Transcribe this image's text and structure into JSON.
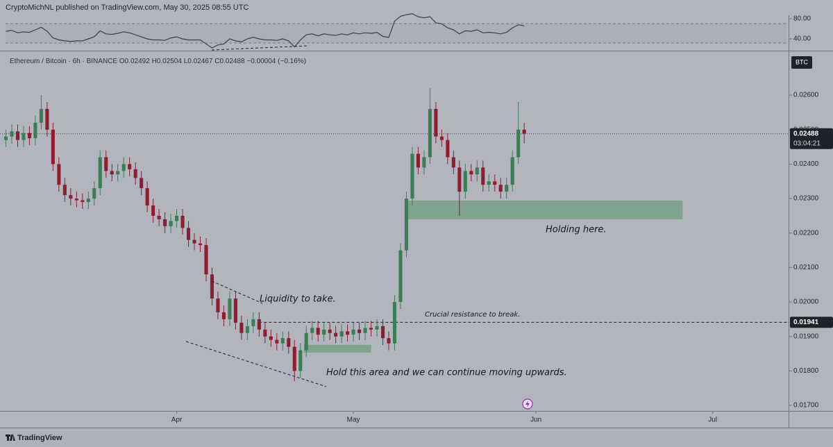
{
  "header": {
    "publish": "CryptoMichNL published on TradingView.com, May 30, 2025 08:55 UTC"
  },
  "chart_data": {
    "type": "candlestick",
    "symbol": "Ethereum / Bitcoin · 6h · BINANCE",
    "legend_values": [
      0.02492,
      0.02504,
      0.02467,
      0.02488,
      -4e-05,
      -0.16
    ],
    "legend_value_labels": [
      "O0.02492",
      "H0.02504",
      "L0.02467",
      "C0.02488",
      "−0.00004",
      "(−0.16%)"
    ],
    "currency": "BTC",
    "last_price": {
      "value": 0.02488,
      "label": "0.02488"
    },
    "countdown": "03:04:21",
    "resistance": {
      "value": 0.01941,
      "label": "0.01941"
    },
    "up_color": "#3b7d55",
    "down_color": "#8f1d2f",
    "grid": false,
    "ylim": [
      0.01684,
      0.02721
    ],
    "yticks": [
      {
        "value": 0.017,
        "label": "0.01700"
      },
      {
        "value": 0.018,
        "label": "0.01800"
      },
      {
        "value": 0.019,
        "label": "0.01900"
      },
      {
        "value": 0.02,
        "label": "0.02000"
      },
      {
        "value": 0.021,
        "label": "0.02100"
      },
      {
        "value": 0.022,
        "label": "0.02200"
      },
      {
        "value": 0.023,
        "label": "0.02300"
      },
      {
        "value": 0.024,
        "label": "0.02400"
      },
      {
        "value": 0.025,
        "label": "0.02500"
      },
      {
        "value": 0.026,
        "label": "0.02600"
      }
    ],
    "xlim": [
      -1,
      133
    ],
    "xticks": [
      {
        "value": 29,
        "label": "Apr"
      },
      {
        "value": 59,
        "label": "May"
      },
      {
        "value": 90,
        "label": "Jun"
      },
      {
        "value": 120,
        "label": "Jul"
      }
    ],
    "open": [
      0.0247,
      0.0248,
      0.02495,
      0.0247,
      0.0249,
      0.02475,
      0.0252,
      0.0256,
      0.025,
      0.024,
      0.0234,
      0.0231,
      0.023,
      0.02295,
      0.0229,
      0.023,
      0.0233,
      0.0242,
      0.0238,
      0.0237,
      0.0238,
      0.024,
      0.02385,
      0.0236,
      0.0233,
      0.0228,
      0.0225,
      0.0224,
      0.0222,
      0.02235,
      0.0225,
      0.02215,
      0.0218,
      0.0217,
      0.02165,
      0.0208,
      0.0201,
      0.0197,
      0.0195,
      0.0201,
      0.0194,
      0.0191,
      0.0193,
      0.0195,
      0.0192,
      0.019,
      0.0189,
      0.0188,
      0.01895,
      0.0187,
      0.018,
      0.0186,
      0.0191,
      0.01925,
      0.01905,
      0.0192,
      0.0191,
      0.019,
      0.01915,
      0.01905,
      0.0192,
      0.0191,
      0.01925,
      0.0192,
      0.0193,
      0.01895,
      0.0188,
      0.02,
      0.0215,
      0.023,
      0.0243,
      0.0239,
      0.0242,
      0.0256,
      0.0248,
      0.0247,
      0.0242,
      0.0239,
      0.0232,
      0.0238,
      0.0237,
      0.0239,
      0.0234,
      0.0235,
      0.0234,
      0.0232,
      0.0234,
      0.0242,
      0.025
    ],
    "high": [
      0.025,
      0.02515,
      0.02515,
      0.0251,
      0.0251,
      0.0254,
      0.026,
      0.0258,
      0.0252,
      0.0242,
      0.0236,
      0.0233,
      0.0232,
      0.02315,
      0.0232,
      0.0235,
      0.0244,
      0.0244,
      0.024,
      0.024,
      0.0242,
      0.0242,
      0.02405,
      0.0238,
      0.0235,
      0.023,
      0.0227,
      0.0226,
      0.02255,
      0.0227,
      0.0227,
      0.02235,
      0.022,
      0.0219,
      0.02185,
      0.021,
      0.0203,
      0.0199,
      0.0203,
      0.0203,
      0.0196,
      0.0195,
      0.0197,
      0.0197,
      0.0194,
      0.0192,
      0.0191,
      0.01915,
      0.01915,
      0.0189,
      0.0188,
      0.0193,
      0.01945,
      0.01945,
      0.0194,
      0.0194,
      0.0193,
      0.01935,
      0.01935,
      0.0194,
      0.0194,
      0.01945,
      0.01945,
      0.0195,
      0.0195,
      0.01915,
      0.0202,
      0.0217,
      0.0232,
      0.0245,
      0.0245,
      0.0244,
      0.0262,
      0.0258,
      0.025,
      0.0249,
      0.0244,
      0.0241,
      0.024,
      0.024,
      0.0241,
      0.0241,
      0.0237,
      0.0237,
      0.0236,
      0.0236,
      0.0244,
      0.0258,
      0.0252
    ],
    "low": [
      0.0245,
      0.0246,
      0.0245,
      0.0245,
      0.02455,
      0.02455,
      0.025,
      0.0248,
      0.0238,
      0.0232,
      0.0229,
      0.0228,
      0.02275,
      0.0227,
      0.0227,
      0.0228,
      0.0231,
      0.0236,
      0.0235,
      0.0235,
      0.0236,
      0.02365,
      0.0234,
      0.0231,
      0.0226,
      0.0223,
      0.0222,
      0.022,
      0.022,
      0.02215,
      0.02195,
      0.0216,
      0.0215,
      0.02145,
      0.0206,
      0.0199,
      0.0195,
      0.0193,
      0.0193,
      0.0192,
      0.0189,
      0.0189,
      0.0191,
      0.019,
      0.0188,
      0.0187,
      0.0186,
      0.0186,
      0.0185,
      0.0177,
      0.0178,
      0.0184,
      0.0189,
      0.01885,
      0.01885,
      0.0189,
      0.0188,
      0.0188,
      0.01885,
      0.01885,
      0.0189,
      0.0189,
      0.019,
      0.019,
      0.01875,
      0.0186,
      0.0186,
      0.0198,
      0.0213,
      0.0228,
      0.0237,
      0.0237,
      0.024,
      0.0246,
      0.0245,
      0.024,
      0.0237,
      0.0225,
      0.023,
      0.0235,
      0.0235,
      0.0232,
      0.0232,
      0.0232,
      0.023,
      0.023,
      0.0232,
      0.024,
      0.0246
    ],
    "close": [
      0.0248,
      0.02495,
      0.0247,
      0.0249,
      0.02475,
      0.0252,
      0.0256,
      0.025,
      0.024,
      0.0234,
      0.0231,
      0.023,
      0.02295,
      0.0229,
      0.023,
      0.0233,
      0.0242,
      0.0238,
      0.0237,
      0.0238,
      0.024,
      0.02385,
      0.0236,
      0.0233,
      0.0228,
      0.0225,
      0.0224,
      0.0222,
      0.02235,
      0.0225,
      0.02215,
      0.0218,
      0.0217,
      0.02165,
      0.0208,
      0.0201,
      0.0197,
      0.0195,
      0.0201,
      0.0194,
      0.0191,
      0.0193,
      0.0195,
      0.0192,
      0.019,
      0.0189,
      0.0188,
      0.01895,
      0.0187,
      0.018,
      0.0186,
      0.0191,
      0.01925,
      0.01905,
      0.0192,
      0.0191,
      0.019,
      0.01915,
      0.01905,
      0.0192,
      0.0191,
      0.01925,
      0.0192,
      0.0193,
      0.01895,
      0.0188,
      0.02,
      0.0215,
      0.023,
      0.0243,
      0.0239,
      0.0242,
      0.0256,
      0.0248,
      0.0247,
      0.0242,
      0.0239,
      0.0232,
      0.0238,
      0.0237,
      0.0239,
      0.0234,
      0.0235,
      0.0234,
      0.0232,
      0.0234,
      0.0242,
      0.025,
      0.02488
    ],
    "zones": [
      {
        "start": 67.9,
        "end": 114.9,
        "low": 0.0224,
        "high": 0.02294,
        "color": "#6f9e7f"
      },
      {
        "start": 50.6,
        "end": 62,
        "low": 0.01853,
        "high": 0.01876,
        "color": "#6f9e7f"
      }
    ],
    "annotations": [
      "Holding here.",
      "Liquidity to take.",
      "Crucial resistance to break.",
      "Hold this area and we can continue moving upwards."
    ],
    "rsi": {
      "type": "line",
      "color": "#3e3a55",
      "values": [
        55,
        57,
        52,
        54,
        53,
        58,
        63,
        55,
        42,
        38,
        36,
        35,
        36,
        36,
        40,
        44,
        56,
        50,
        49,
        51,
        54,
        52,
        48,
        44,
        40,
        38,
        38,
        37,
        42,
        44,
        40,
        38,
        38,
        38,
        30,
        22,
        28,
        30,
        40,
        36,
        34,
        40,
        43,
        40,
        38,
        38,
        37,
        40,
        36,
        24,
        38,
        48,
        50,
        46,
        50,
        48,
        47,
        50,
        48,
        52,
        50,
        52,
        51,
        53,
        45,
        43,
        75,
        85,
        88,
        90,
        84,
        82,
        84,
        72,
        70,
        62,
        58,
        50,
        56,
        55,
        58,
        52,
        53,
        52,
        50,
        53,
        62,
        68,
        66
      ],
      "ylim": [
        20.7,
        86.9
      ],
      "yticks": [
        {
          "value": 80,
          "label": "80.00"
        },
        {
          "value": 40,
          "label": "40.00"
        }
      ]
    }
  },
  "footer": {
    "brand": "TradingView"
  }
}
